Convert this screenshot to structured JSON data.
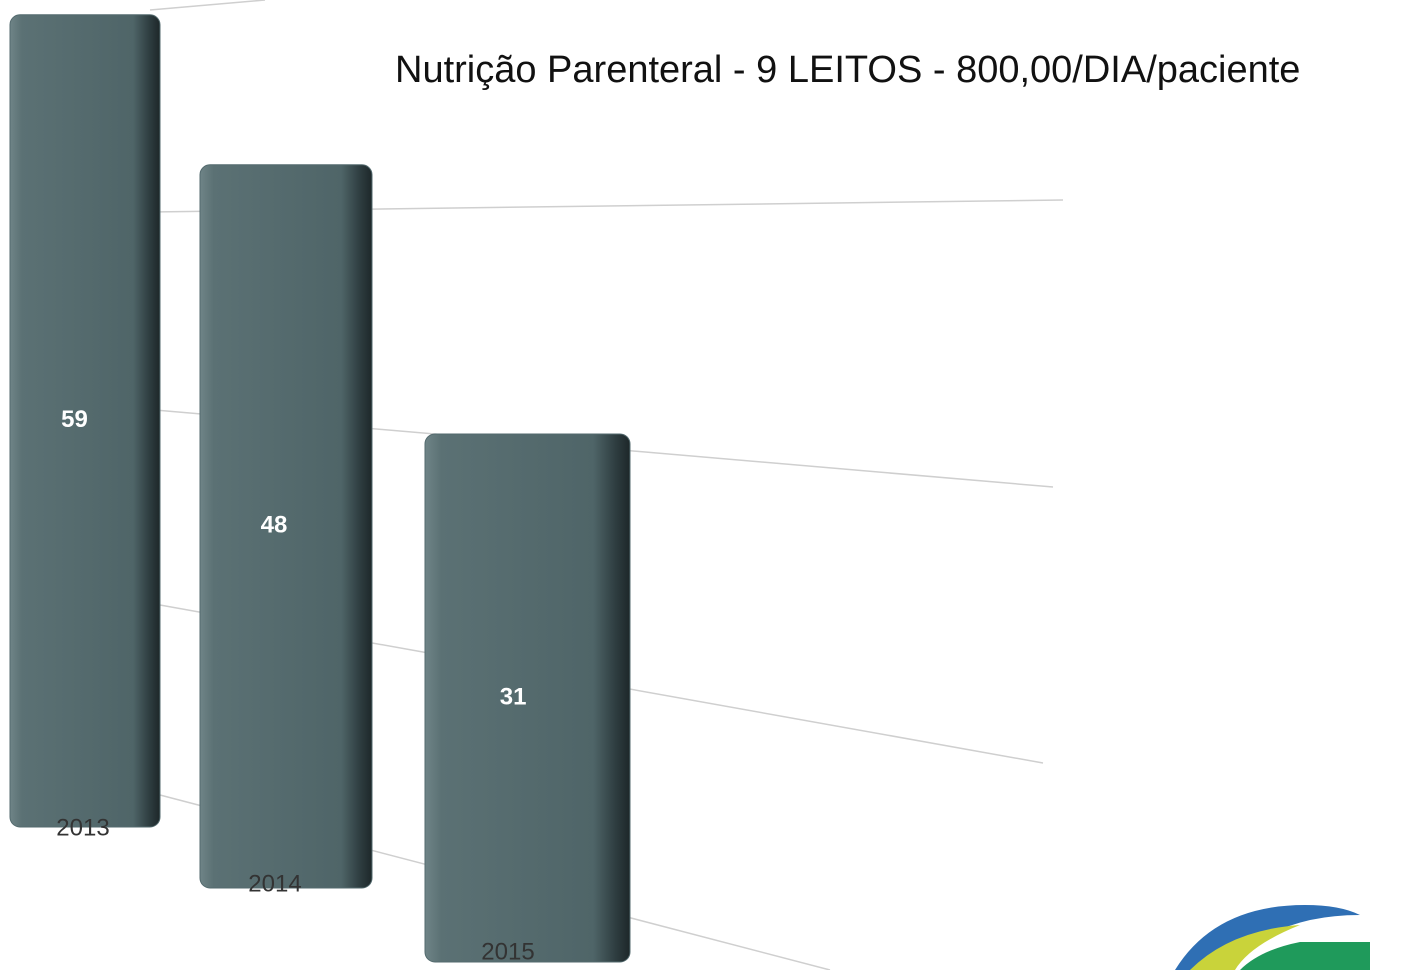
{
  "chart_data": {
    "type": "bar",
    "title": "Nutrição Parenteral - 9 LEITOS - 800,00/DIA/paciente",
    "categories": [
      "2013",
      "2014",
      "2015"
    ],
    "values": [
      59,
      48,
      31
    ],
    "color": "#536a6e",
    "ylim": [
      0,
      60
    ]
  }
}
